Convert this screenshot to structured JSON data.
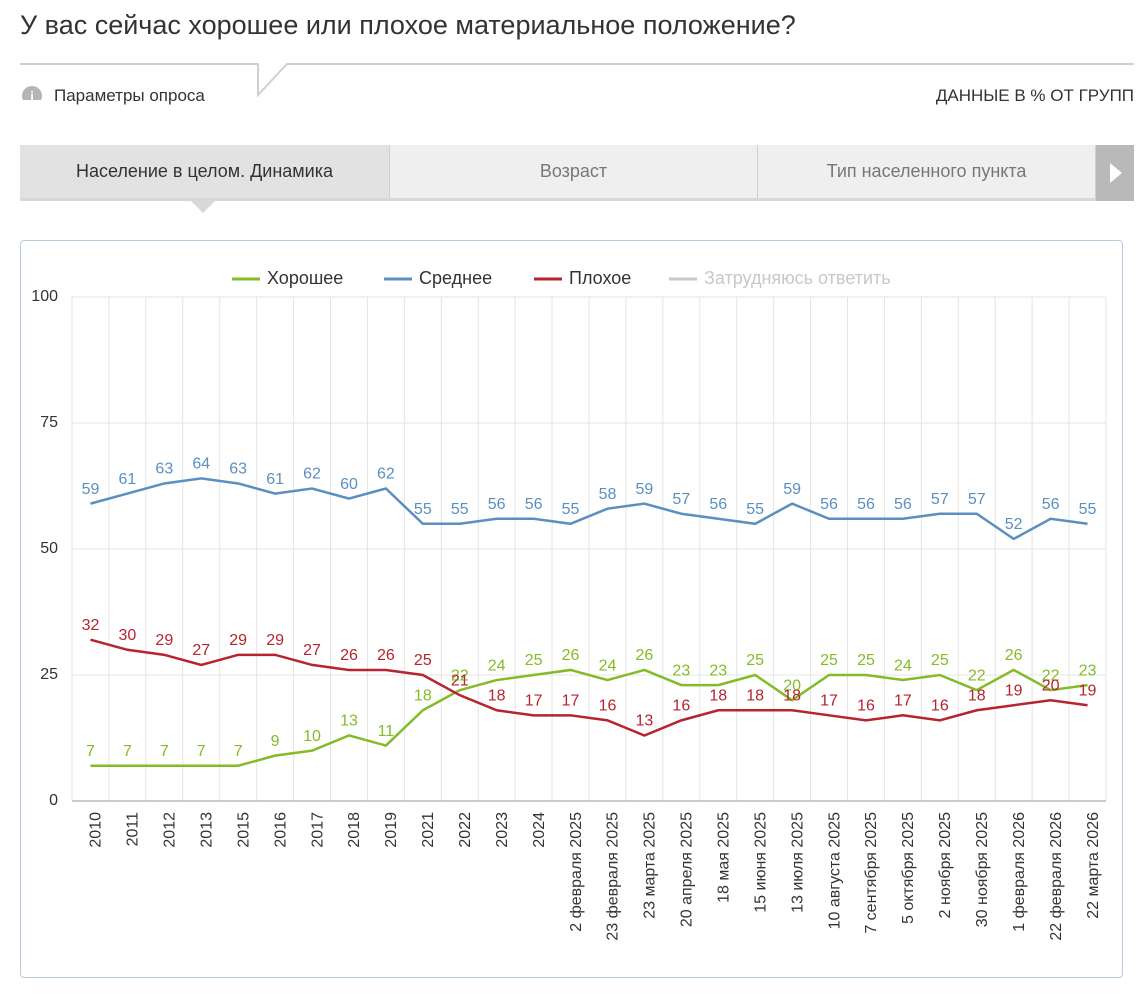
{
  "header": {
    "title": "У вас сейчас хорошее или плохое материальное положение?",
    "params": "Параметры опроса",
    "units": "ДАННЫЕ В % ОТ ГРУПП"
  },
  "tabs": [
    "Население в целом. Динамика",
    "Возраст",
    "Тип населенного пункта"
  ],
  "chart_data": {
    "type": "line",
    "categories": [
      "2010",
      "2011",
      "2012",
      "2013",
      "2015",
      "2016",
      "2017",
      "2018",
      "2019",
      "2021",
      "2022",
      "2023",
      "2024",
      "2 февраля 2025",
      "23 февраля 2025",
      "23 марта 2025",
      "20 апреля 2025",
      "18 мая 2025",
      "15 июня 2025",
      "13 июля 2025",
      "10 августа 2025",
      "7 сентября 2025",
      "5 октября 2025",
      "2 ноября 2025",
      "30 ноября 2025",
      "1 февраля 2026",
      "22 февраля 2026",
      "22 марта 2026"
    ],
    "series": [
      {
        "name": "Хорошее",
        "color": "#84bb29",
        "values": [
          7,
          7,
          7,
          7,
          7,
          9,
          10,
          13,
          11,
          18,
          22,
          24,
          25,
          26,
          24,
          26,
          23,
          23,
          25,
          20,
          25,
          25,
          24,
          25,
          22,
          26,
          22,
          23
        ]
      },
      {
        "name": "Среднее",
        "color": "#5b8fc0",
        "values": [
          59,
          61,
          63,
          64,
          63,
          61,
          62,
          60,
          62,
          55,
          55,
          56,
          56,
          55,
          58,
          59,
          57,
          56,
          55,
          59,
          56,
          56,
          56,
          57,
          57,
          52,
          56,
          55
        ]
      },
      {
        "name": "Плохое",
        "color": "#b5242f",
        "values": [
          32,
          30,
          29,
          27,
          29,
          29,
          27,
          26,
          26,
          25,
          21,
          18,
          17,
          17,
          16,
          13,
          16,
          18,
          18,
          18,
          17,
          16,
          17,
          16,
          18,
          19,
          20,
          19
        ]
      }
    ],
    "inactive_legend": {
      "name": "Затрудняюсь ответить",
      "color": "#c8c8c8"
    },
    "ylim": [
      0,
      100
    ],
    "yticks": [
      0,
      25,
      50,
      75,
      100
    ],
    "grid": true
  }
}
